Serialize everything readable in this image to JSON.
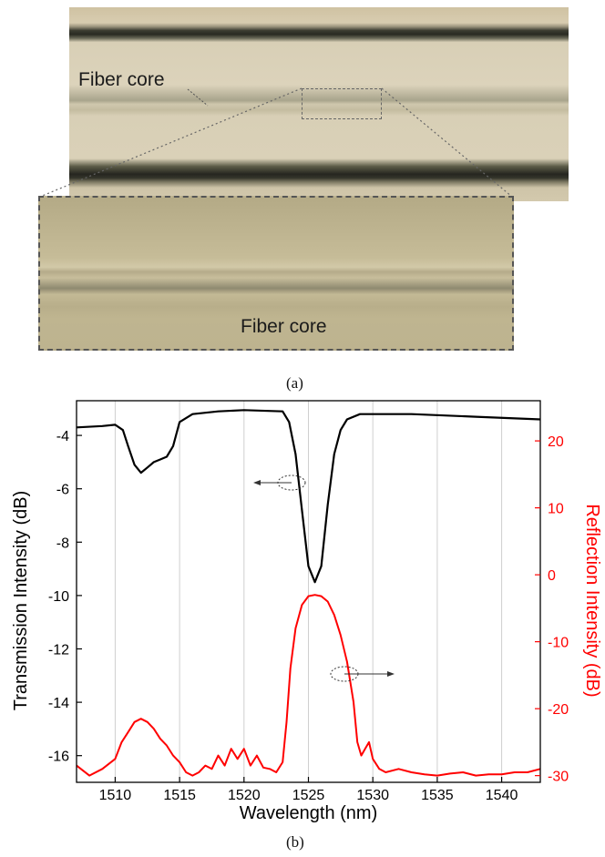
{
  "panel_a": {
    "label_top": "Fiber core",
    "label_inset": "Fiber core",
    "caption": "(a)"
  },
  "panel_b": {
    "caption": "(b)"
  },
  "chart_data": {
    "type": "line",
    "xlabel": "Wavelength (nm)",
    "ylabel_left": "Transmission Intensity (dB)",
    "ylabel_right": "Reflection Intensity (dB)",
    "xlim": [
      1507,
      1543
    ],
    "ylim_left": [
      -17,
      -2.7
    ],
    "ylim_right": [
      -31,
      26
    ],
    "x_ticks": [
      1510,
      1515,
      1520,
      1525,
      1530,
      1535,
      1540
    ],
    "y_ticks_left": [
      -16,
      -14,
      -12,
      -10,
      -8,
      -6,
      -4
    ],
    "y_ticks_right": [
      -30,
      -20,
      -10,
      0,
      10,
      20
    ],
    "grid": "vertical",
    "colors": {
      "transmission": "#000000",
      "reflection": "#ff0000"
    },
    "series": [
      {
        "axis": "left",
        "color": "#000000",
        "x": [
          1507,
          1509,
          1510,
          1510.6,
          1511,
          1511.5,
          1512,
          1512.5,
          1513,
          1513.5,
          1514,
          1514.5,
          1515,
          1516,
          1518,
          1520,
          1523,
          1523.5,
          1524,
          1524.5,
          1525,
          1525.5,
          1526,
          1526.5,
          1527,
          1527.5,
          1528,
          1529,
          1531,
          1533,
          1538,
          1543
        ],
        "y": [
          -3.7,
          -3.65,
          -3.6,
          -3.8,
          -4.4,
          -5.1,
          -5.4,
          -5.2,
          -5.0,
          -4.9,
          -4.8,
          -4.4,
          -3.5,
          -3.2,
          -3.1,
          -3.05,
          -3.1,
          -3.5,
          -4.7,
          -6.8,
          -8.9,
          -9.5,
          -8.9,
          -6.6,
          -4.7,
          -3.8,
          -3.4,
          -3.2,
          -3.2,
          -3.2,
          -3.3,
          -3.4
        ]
      },
      {
        "axis": "right",
        "color": "#ff0000",
        "x": [
          1507,
          1508,
          1509,
          1510,
          1510.5,
          1511,
          1511.5,
          1512,
          1512.5,
          1513,
          1513.5,
          1514,
          1514.5,
          1515,
          1515.5,
          1516,
          1516.5,
          1517,
          1517.5,
          1518,
          1518.5,
          1519,
          1519.5,
          1520,
          1520.5,
          1521,
          1521.5,
          1522,
          1522.5,
          1523,
          1523.3,
          1523.6,
          1524,
          1524.5,
          1525,
          1525.5,
          1526,
          1526.5,
          1527,
          1527.5,
          1528,
          1528.5,
          1528.8,
          1529.1,
          1529.4,
          1529.7,
          1530,
          1530.5,
          1531,
          1532,
          1533,
          1534,
          1535,
          1536,
          1537,
          1538,
          1539,
          1540,
          1541,
          1542,
          1543
        ],
        "y": [
          -28.5,
          -30,
          -29,
          -27.5,
          -25,
          -23.5,
          -22,
          -21.5,
          -22,
          -23,
          -24.5,
          -25.5,
          -27,
          -28,
          -29.5,
          -30,
          -29.5,
          -28.5,
          -29,
          -27,
          -28.5,
          -26,
          -27.5,
          -26,
          -28.5,
          -27,
          -28.8,
          -29,
          -29.5,
          -28,
          -22,
          -14,
          -8,
          -4.5,
          -3.2,
          -3.0,
          -3.2,
          -4,
          -6,
          -9,
          -13,
          -19,
          -25,
          -27,
          -26,
          -25,
          -27.5,
          -29,
          -29.5,
          -29,
          -29.5,
          -29.8,
          -30,
          -29.7,
          -29.5,
          -30,
          -29.8,
          -29.8,
          -29.5,
          -29.5,
          -29
        ]
      }
    ]
  }
}
